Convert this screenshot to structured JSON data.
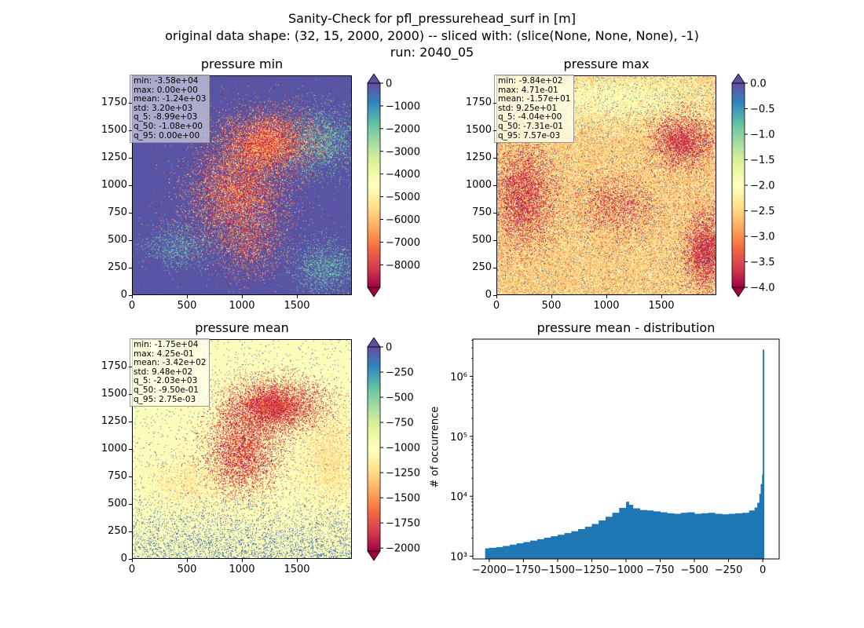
{
  "suptitle": {
    "line1": "Sanity-Check for pfl_pressurehead_surf in [m]",
    "line2": "original data shape: (32, 15, 2000, 2000) -- sliced with: (slice(None, None, None), -1)",
    "line3": "run: 2040_05"
  },
  "panels": {
    "min": {
      "title": "pressure min",
      "stats": [
        "min: -3.58e+04",
        "max: 0.00e+00",
        "mean: -1.24e+03",
        "std: 3.20e+03",
        "q_5: -8.99e+03",
        "q_50: -1.08e+00",
        "q_95: 0.00e+00"
      ],
      "cbar_ticks": [
        "0",
        "−1000",
        "−2000",
        "−3000",
        "−4000",
        "−5000",
        "−6000",
        "−7000",
        "−8000"
      ],
      "cbar_range": [
        -8990,
        0
      ]
    },
    "max": {
      "title": "pressure max",
      "stats": [
        "min: -9.84e+02",
        "max: 4.71e-01",
        "mean: -1.57e+01",
        "std: 9.25e+01",
        "q_5: -4.04e+00",
        "q_50: -7.31e-01",
        "q_95: 7.57e-03"
      ],
      "cbar_ticks": [
        "0.0",
        "−0.5",
        "−1.0",
        "−1.5",
        "−2.0",
        "−2.5",
        "−3.0",
        "−3.5",
        "−4.0"
      ],
      "cbar_range": [
        -4.0,
        0.0
      ]
    },
    "mean": {
      "title": "pressure mean",
      "stats": [
        "min: -1.75e+04",
        "max: 4.25e-01",
        "mean: -3.42e+02",
        "std: 9.48e+02",
        "q_5: -2.03e+03",
        "q_50: -9.50e-01",
        "q_95: 2.75e-03"
      ],
      "cbar_ticks": [
        "0",
        "−250",
        "−500",
        "−750",
        "−1000",
        "−1250",
        "−1500",
        "−1750",
        "−2000"
      ],
      "cbar_range": [
        -2030,
        0
      ]
    }
  },
  "map_axis": {
    "xticks": [
      "0",
      "500",
      "1000",
      "1500"
    ],
    "yticks": [
      "0",
      "250",
      "500",
      "750",
      "1000",
      "1250",
      "1500",
      "1750"
    ]
  },
  "histogram": {
    "title": "pressure mean - distribution",
    "ylabel": "# of occurrence",
    "xticks": [
      "−2000",
      "−1750",
      "−1500",
      "−1250",
      "−1000",
      "−750",
      "−500",
      "−250",
      "0"
    ],
    "yticks": [
      "10³",
      "10⁴",
      "10⁵",
      "10⁶"
    ],
    "bar_color": "#1f77b4"
  },
  "chart_data": {
    "type": "bar",
    "title": "pressure mean - distribution",
    "xlabel": "",
    "ylabel": "# of occurrence",
    "yscale": "log",
    "xlim": [
      -2120,
      120
    ],
    "ylim": [
      900,
      4200000
    ],
    "bins_x": [
      -2030,
      -2000,
      -1950,
      -1900,
      -1850,
      -1800,
      -1750,
      -1700,
      -1650,
      -1600,
      -1550,
      -1500,
      -1450,
      -1400,
      -1350,
      -1300,
      -1250,
      -1200,
      -1150,
      -1100,
      -1050,
      -1000,
      -980,
      -950,
      -900,
      -850,
      -800,
      -750,
      -700,
      -650,
      -600,
      -550,
      -500,
      -450,
      -400,
      -350,
      -300,
      -250,
      -200,
      -150,
      -100,
      -60,
      -40,
      -25,
      -15,
      -5,
      0
    ],
    "counts": [
      1350,
      1380,
      1420,
      1480,
      1560,
      1640,
      1720,
      1820,
      1920,
      2030,
      2150,
      2280,
      2430,
      2610,
      2830,
      3100,
      3450,
      3950,
      4550,
      5300,
      6400,
      8100,
      7200,
      6300,
      5900,
      5800,
      5600,
      5400,
      5200,
      5100,
      5300,
      5400,
      5100,
      5200,
      5300,
      5100,
      5000,
      5100,
      5200,
      5300,
      5800,
      6500,
      7800,
      11000,
      16000,
      23000,
      2800000
    ]
  },
  "colors": {
    "spectral_low": "#9e0142",
    "spectral_high": "#5e4fa2",
    "background": "#ffffff"
  }
}
